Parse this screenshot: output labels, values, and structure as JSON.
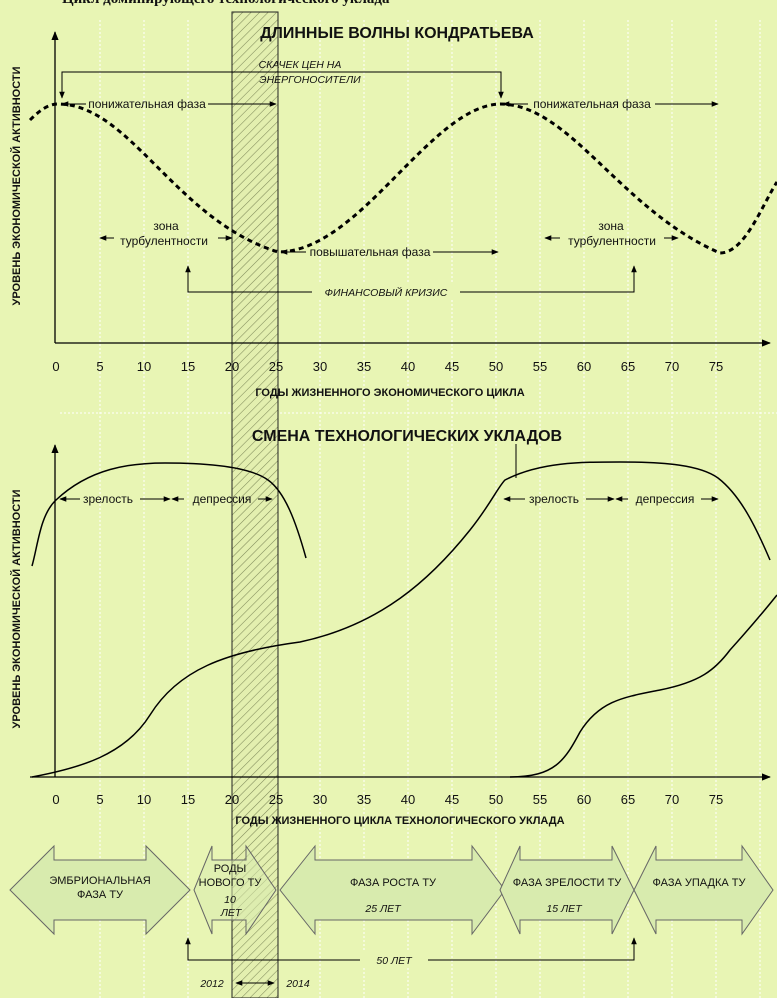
{
  "caption": "Цикл доминирующего технологического уклада",
  "top_chart": {
    "title": "ДЛИННЫЕ ВОЛНЫ КОНДРАТЬЕВА",
    "ylabel": "УРОВЕНЬ ЭКОНОМИЧЕСКОЙ АКТИВНОСТИ",
    "xlabel": "ГОДЫ ЖИЗНЕННОГО ЭКОНОМИЧЕСКОГО ЦИКЛА",
    "ticks": [
      "0",
      "5",
      "10",
      "15",
      "20",
      "25",
      "30",
      "35",
      "40",
      "45",
      "50",
      "55",
      "60",
      "65",
      "70",
      "75"
    ],
    "energy_jump_line1": "СКАЧЕК ЦЕН НА",
    "energy_jump_line2": "ЭНЕРГОНОСИТЕЛИ",
    "down_phase_label": "понижательная фаза",
    "up_phase_label": "повышательная фаза",
    "turbulence_line1": "зона",
    "turbulence_line2": "турбулентности",
    "financial_crisis": "ФИНАНСОВЫЙ КРИЗИС"
  },
  "bottom_chart": {
    "title": "СМЕНА ТЕХНОЛОГИЧЕСКИХ УКЛАДОВ",
    "ylabel": "УРОВЕНЬ ЭКОНОМИЧЕСКОЙ АКТИВНОСТИ",
    "xlabel": "ГОДЫ ЖИЗНЕННОГО ЦИКЛА ТЕХНОЛОГИЧЕСКОГО УКЛАДА",
    "ticks": [
      "0",
      "5",
      "10",
      "15",
      "20",
      "25",
      "30",
      "35",
      "40",
      "45",
      "50",
      "55",
      "60",
      "65",
      "70",
      "75"
    ],
    "maturity_label": "зрелость",
    "depression_label": "депрессия"
  },
  "phases": {
    "embryonic_line1": "ЭМБРИОНАЛЬНАЯ",
    "embryonic_line2": "ФАЗА ТУ",
    "birth_line1": "РОДЫ",
    "birth_line2": "НОВОГО ТУ",
    "birth_years_line1": "10",
    "birth_years_line2": "ЛЕТ",
    "growth": "ФАЗА РОСТА ТУ",
    "growth_years": "25 ЛЕТ",
    "maturity": "ФАЗА ЗРЕЛОСТИ ТУ",
    "maturity_years": "15 ЛЕТ",
    "decline": "ФАЗА УПАДКА ТУ",
    "total_years": "50 ЛЕТ",
    "year_start": "2012",
    "year_end": "2014"
  },
  "colors": {
    "background": "#e8f5b4",
    "arrow_fill": "#d8ebae",
    "arrow_stroke": "#666666",
    "curve": "#000000"
  }
}
